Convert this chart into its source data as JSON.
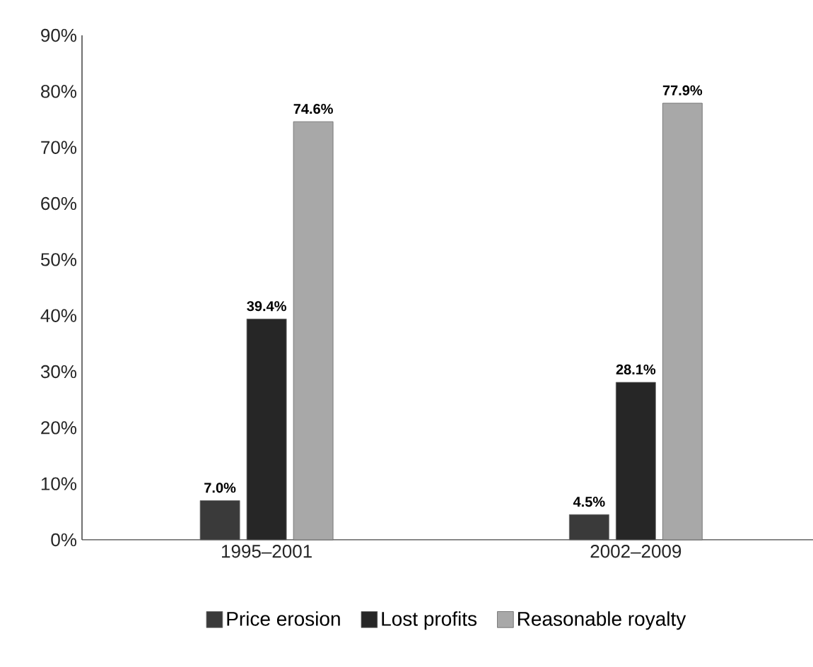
{
  "chart_data": {
    "type": "bar",
    "categories": [
      "1995–2001",
      "2002–2009"
    ],
    "series": [
      {
        "name": "Price erosion",
        "color": "#3a3a3a",
        "values": [
          7.0,
          4.5
        ],
        "value_labels": [
          "7.0%",
          "4.5%"
        ]
      },
      {
        "name": "Lost profits",
        "color": "#262626",
        "values": [
          39.4,
          28.1
        ],
        "value_labels": [
          "39.4%",
          "28.1%"
        ]
      },
      {
        "name": "Reasonable royalty",
        "color": "#a8a8a8",
        "values": [
          74.6,
          77.9
        ],
        "value_labels": [
          "74.6%",
          "77.9%"
        ]
      }
    ],
    "ylim": [
      0,
      90
    ],
    "yticks": [
      {
        "value": 0,
        "label": "0%"
      },
      {
        "value": 10,
        "label": "10%"
      },
      {
        "value": 20,
        "label": "20%"
      },
      {
        "value": 30,
        "label": "30%"
      },
      {
        "value": 40,
        "label": "40%"
      },
      {
        "value": 50,
        "label": "50%"
      },
      {
        "value": 60,
        "label": "60%"
      },
      {
        "value": 70,
        "label": "70%"
      },
      {
        "value": 80,
        "label": "80%"
      },
      {
        "value": 90,
        "label": "90%"
      }
    ],
    "legend": "bottom",
    "grid": false
  }
}
